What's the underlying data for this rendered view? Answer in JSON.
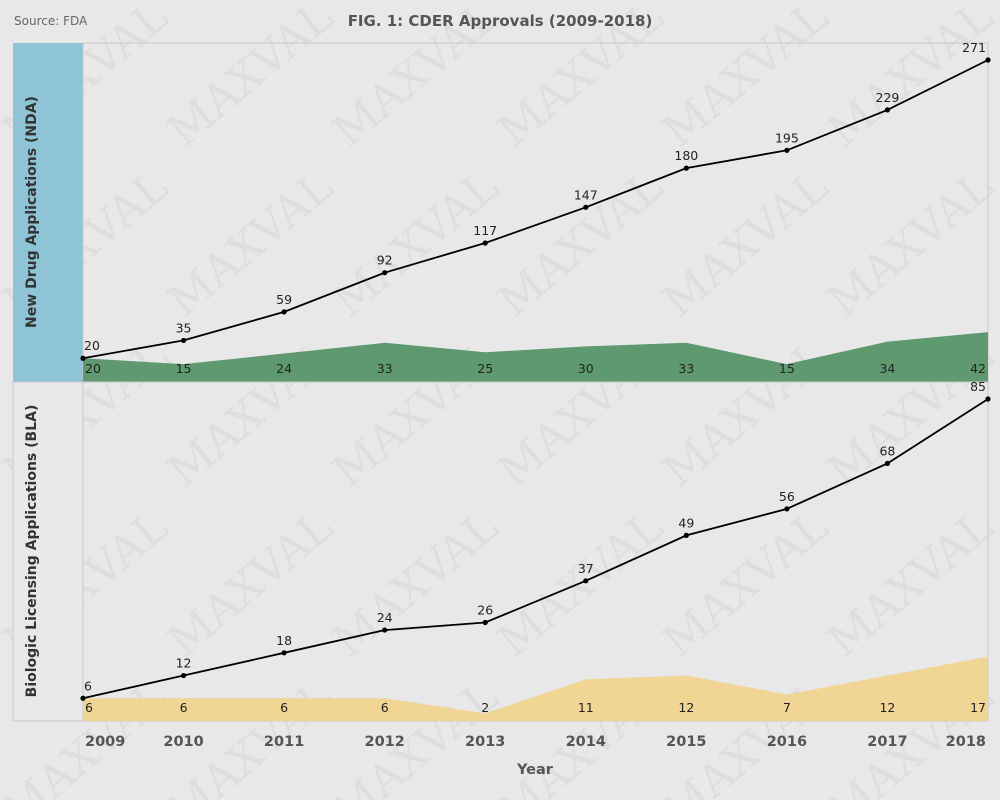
{
  "header": {
    "source": "Source: FDA",
    "title": "FIG. 1: CDER Approvals (2009-2018)"
  },
  "watermark": "MAXVAL",
  "colors": {
    "background": "#e8e8e8",
    "nda_header": "#8ec4d6",
    "nda_area": "#5e9970",
    "bla_area": "#f0d595",
    "line": "#000000"
  },
  "chart_data": {
    "type": "line",
    "x": [
      "2009",
      "2010",
      "2011",
      "2012",
      "2013",
      "2014",
      "2015",
      "2016",
      "2017",
      "2018"
    ],
    "xlabel": "Year",
    "panels": [
      {
        "label": "New Drug Applications (NDA)",
        "line": {
          "values": [
            20,
            35,
            59,
            92,
            117,
            147,
            180,
            195,
            229,
            271
          ]
        },
        "area": {
          "values": [
            20,
            15,
            24,
            33,
            25,
            30,
            33,
            15,
            34,
            42
          ]
        }
      },
      {
        "label": "Biologic Licensing Applications (BLA)",
        "line": {
          "values": [
            6,
            12,
            18,
            24,
            26,
            37,
            49,
            56,
            68,
            85
          ]
        },
        "area": {
          "values": [
            6,
            6,
            6,
            6,
            2,
            11,
            12,
            7,
            12,
            17
          ]
        }
      }
    ]
  }
}
